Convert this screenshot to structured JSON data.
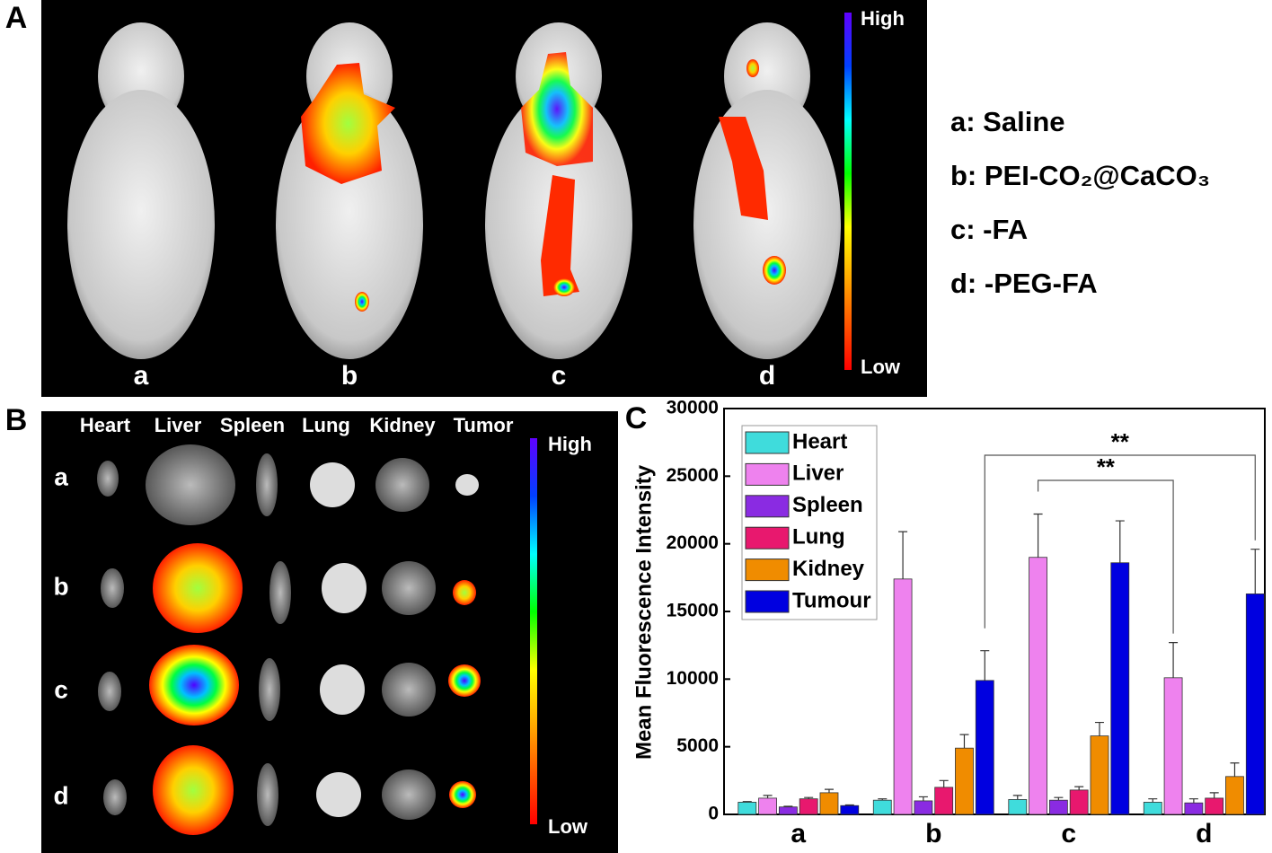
{
  "panel_a": {
    "label": "A",
    "mouse_labels": [
      "a",
      "b",
      "c",
      "d"
    ],
    "scale": {
      "high": "High",
      "low": "Low"
    },
    "legend": [
      "a: Saline",
      "b: PEI-CO₂@CaCO₃",
      "c: -FA",
      "d: -PEG-FA"
    ]
  },
  "panel_b": {
    "label": "B",
    "organs": [
      "Heart",
      "Liver",
      "Spleen",
      "Lung",
      "Kidney",
      "Tumor"
    ],
    "rows": [
      "a",
      "b",
      "c",
      "d"
    ],
    "scale": {
      "high": "High",
      "low": "Low"
    }
  },
  "chart_data": {
    "type": "bar",
    "label": "C",
    "y_label": "Mean Fluorescence Intensity",
    "categories": [
      "a",
      "b",
      "c",
      "d"
    ],
    "ylim": [
      0,
      30000
    ],
    "yticks": [
      0,
      5000,
      10000,
      15000,
      20000,
      25000,
      30000
    ],
    "series": [
      {
        "name": "Heart",
        "color": "#3fdcdc",
        "values": [
          900,
          1050,
          1100,
          900
        ],
        "errors": [
          50,
          100,
          300,
          250
        ]
      },
      {
        "name": "Liver",
        "color": "#ee82ee",
        "values": [
          1200,
          17400,
          19000,
          10100
        ],
        "errors": [
          200,
          3500,
          3200,
          2600
        ]
      },
      {
        "name": "Spleen",
        "color": "#8a2be2",
        "values": [
          550,
          1000,
          1050,
          850
        ],
        "errors": [
          50,
          300,
          200,
          300
        ]
      },
      {
        "name": "Lung",
        "color": "#e8186e",
        "values": [
          1150,
          2000,
          1800,
          1200
        ],
        "errors": [
          100,
          500,
          250,
          400
        ]
      },
      {
        "name": "Kidney",
        "color": "#f08c00",
        "values": [
          1600,
          4900,
          5800,
          2800
        ],
        "errors": [
          250,
          1000,
          1000,
          1000
        ]
      },
      {
        "name": "Tumour",
        "color": "#0000e0",
        "values": [
          650,
          9900,
          18600,
          16300
        ],
        "errors": [
          50,
          2200,
          3100,
          3300
        ]
      }
    ],
    "annotations": [
      "**",
      "**"
    ]
  }
}
